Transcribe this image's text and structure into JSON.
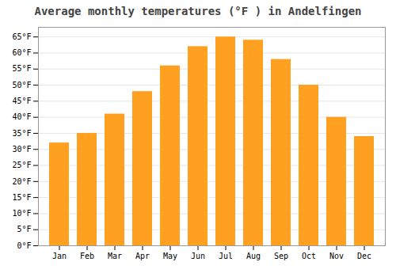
{
  "chart_data": {
    "type": "bar",
    "title": "Average monthly temperatures (°F ) in Andelfingen",
    "categories": [
      "Jan",
      "Feb",
      "Mar",
      "Apr",
      "May",
      "Jun",
      "Jul",
      "Aug",
      "Sep",
      "Oct",
      "Nov",
      "Dec"
    ],
    "values": [
      32,
      35,
      41,
      48,
      56,
      62,
      65,
      64,
      58,
      50,
      40,
      34
    ],
    "color": "#FFA020",
    "ylim": [
      0,
      68
    ],
    "yticks": [
      {
        "value": 0,
        "label": "0°F"
      },
      {
        "value": 5,
        "label": "5°F"
      },
      {
        "value": 10,
        "label": "10°F"
      },
      {
        "value": 15,
        "label": "15°F"
      },
      {
        "value": 20,
        "label": "20°F"
      },
      {
        "value": 25,
        "label": "25°F"
      },
      {
        "value": 30,
        "label": "30°F"
      },
      {
        "value": 35,
        "label": "35°F"
      },
      {
        "value": 40,
        "label": "40°F"
      },
      {
        "value": 45,
        "label": "45°F"
      },
      {
        "value": 50,
        "label": "50°F"
      },
      {
        "value": 55,
        "label": "55°F"
      },
      {
        "value": 60,
        "label": "60°F"
      },
      {
        "value": 65,
        "label": "65°F"
      }
    ],
    "grid": true
  }
}
